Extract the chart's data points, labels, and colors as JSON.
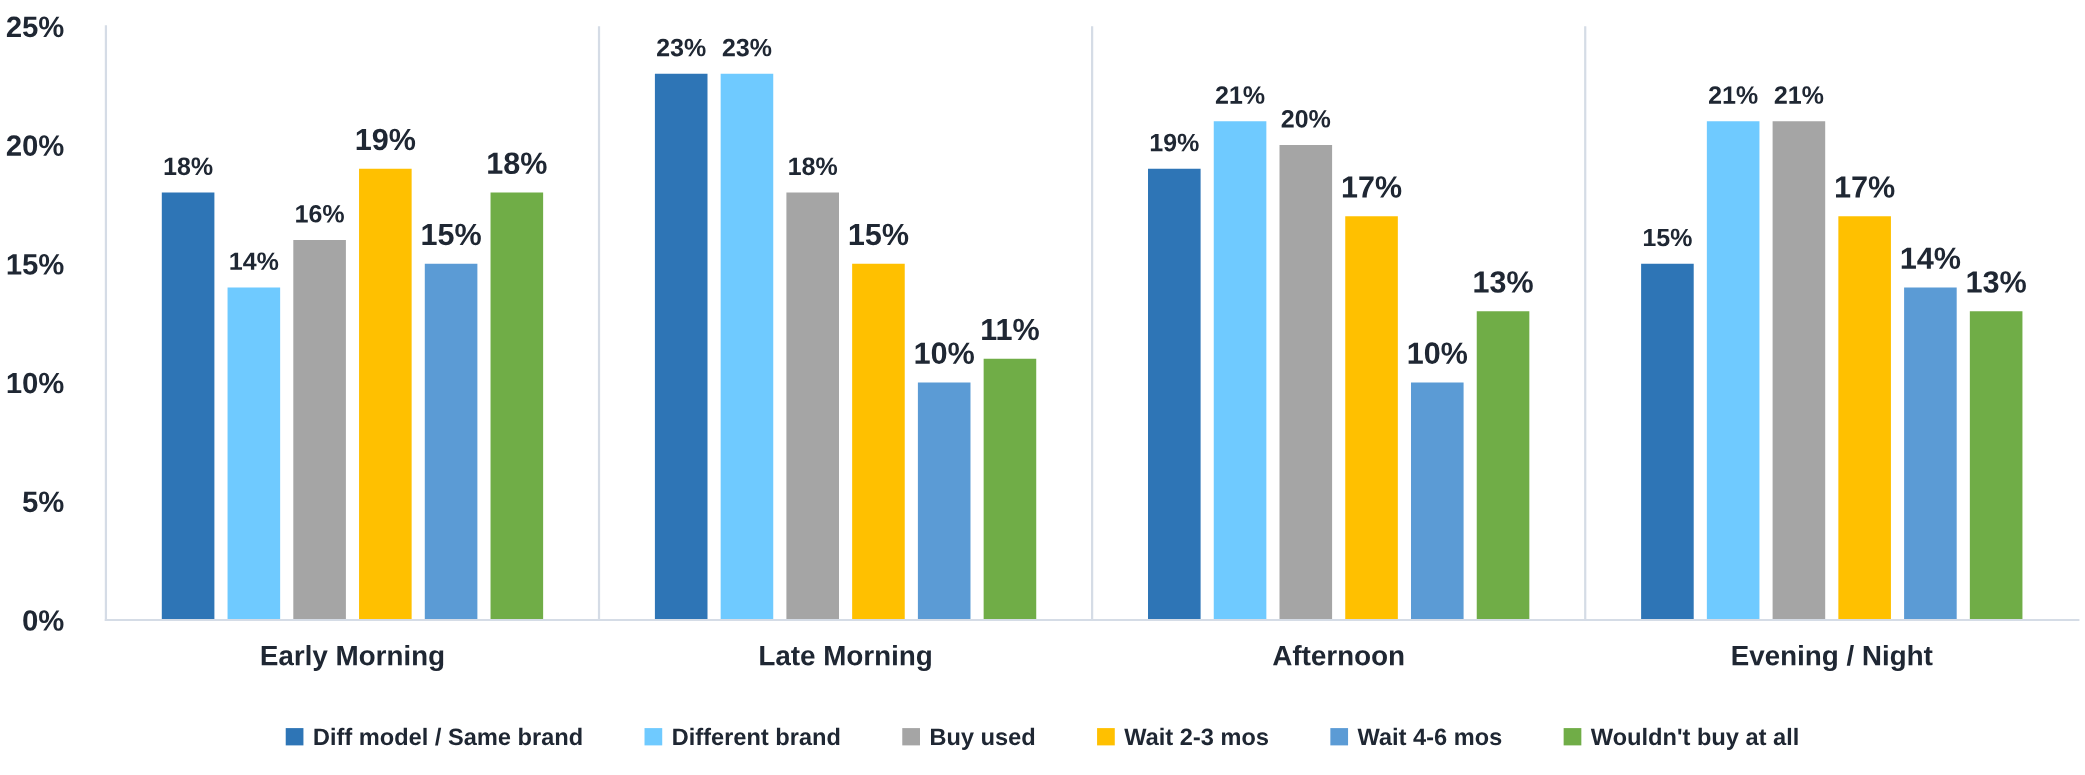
{
  "chart_data": {
    "type": "bar",
    "categories": [
      "Early Morning",
      "Late Morning",
      "Afternoon",
      "Evening / Night"
    ],
    "series": [
      {
        "name": "Diff model / Same brand",
        "color": "#2e75b6",
        "values": [
          18,
          23,
          19,
          15
        ],
        "value_labels": [
          "18%",
          "23%",
          "19%",
          "15%"
        ]
      },
      {
        "name": "Different brand",
        "color": "#6fcaff",
        "values": [
          14,
          23,
          21,
          21
        ],
        "value_labels": [
          "14%",
          "23%",
          "21%",
          "21%"
        ]
      },
      {
        "name": "Buy used",
        "color": "#a5a5a5",
        "values": [
          16,
          18,
          20,
          21
        ],
        "value_labels": [
          "16%",
          "18%",
          "20%",
          "21%"
        ]
      },
      {
        "name": "Wait 2-3 mos",
        "color": "#ffc000",
        "values": [
          19,
          15,
          17,
          17
        ],
        "value_labels": [
          "19%",
          "15%",
          "17%",
          "17%"
        ]
      },
      {
        "name": "Wait 4-6 mos",
        "color": "#5b9bd5",
        "values": [
          15,
          10,
          10,
          14
        ],
        "value_labels": [
          "15%",
          "10%",
          "10%",
          "14%"
        ]
      },
      {
        "name": "Wouldn't buy at all",
        "color": "#70ad47",
        "values": [
          18,
          11,
          13,
          13
        ],
        "value_labels": [
          "18%",
          "11%",
          "13%",
          "13%"
        ]
      }
    ],
    "ylim": [
      0,
      25
    ],
    "yticks": [
      {
        "value": 0,
        "label": "0%"
      },
      {
        "value": 5,
        "label": "5%"
      },
      {
        "value": 10,
        "label": "10%"
      },
      {
        "value": 15,
        "label": "15%"
      },
      {
        "value": 20,
        "label": "20%"
      },
      {
        "value": 25,
        "label": "25%"
      }
    ],
    "grid": "x",
    "legend": "bottom"
  }
}
